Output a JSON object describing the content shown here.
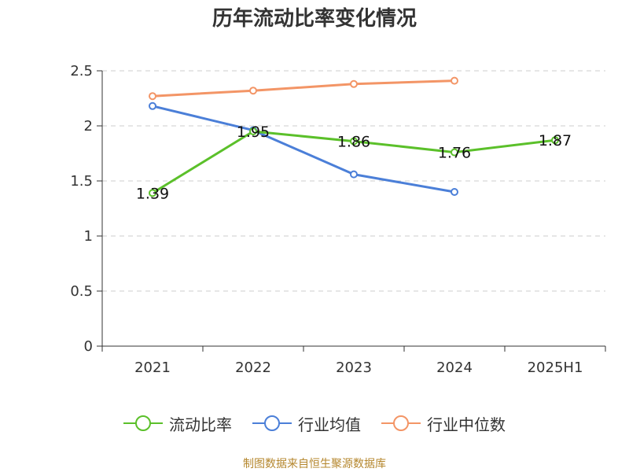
{
  "chart_data": {
    "type": "line",
    "title": "历年流动比率变化情况",
    "categories": [
      "2021",
      "2022",
      "2023",
      "2024",
      "2025H1"
    ],
    "ylim": [
      0,
      2.5
    ],
    "yticks": [
      "0",
      "0.5",
      "1",
      "1.5",
      "2",
      "2.5"
    ],
    "grid": true,
    "legend_position": "bottom",
    "series": [
      {
        "name": "流动比率",
        "color": "#5bc02a",
        "values": [
          1.39,
          1.95,
          1.86,
          1.76,
          1.87
        ],
        "labels": [
          "1.39",
          "1.95",
          "1.86",
          "1.76",
          "1.87"
        ]
      },
      {
        "name": "行业均值",
        "color": "#4b7fd8",
        "values": [
          2.18,
          1.96,
          1.56,
          1.4,
          null
        ]
      },
      {
        "name": "行业中位数",
        "color": "#f39566",
        "values": [
          2.27,
          2.32,
          2.38,
          2.41,
          null
        ]
      }
    ],
    "source": "制图数据来自恒生聚源数据库"
  }
}
